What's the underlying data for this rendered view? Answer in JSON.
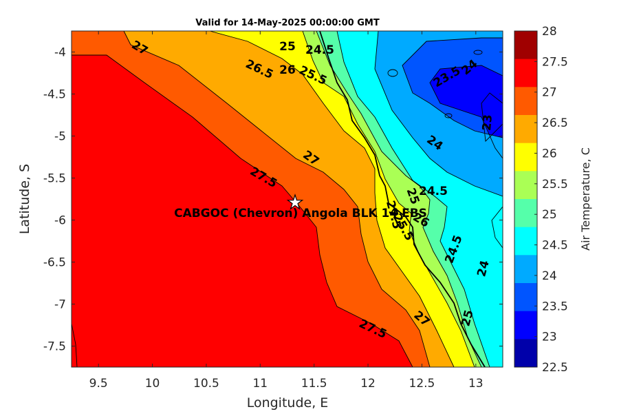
{
  "title": "Valid for 14-May-2025 00:00:00 GMT",
  "xlabel": "Longitude, E",
  "ylabel": "Latitude, S",
  "colorbar_label": "Air Temperature, C",
  "site_label": "CABGOC (Chevron)  Angola BLK 14 EBS",
  "site_marker": "star-icon",
  "x_ticks": [
    "9.5",
    "10",
    "10.5",
    "11",
    "11.5",
    "12",
    "12.5",
    "13"
  ],
  "y_ticks": [
    "-4",
    "-4.5",
    "-5",
    "-5.5",
    "-6",
    "-6.5",
    "-7",
    "-7.5"
  ],
  "colorbar_ticks": [
    "28",
    "27.5",
    "27",
    "26.5",
    "26",
    "25.5",
    "25",
    "24.5",
    "24",
    "23.5",
    "23",
    "22.5"
  ],
  "colorbar_colors": [
    "#a00000",
    "#ff0000",
    "#ff5a00",
    "#ffaa00",
    "#ffff00",
    "#aaff55",
    "#55ffaa",
    "#00ffff",
    "#00aaff",
    "#0055ff",
    "#0000ff",
    "#0000aa"
  ],
  "contour_labels": [
    {
      "text": "27"
    },
    {
      "text": "26.5"
    },
    {
      "text": "26"
    },
    {
      "text": "25"
    },
    {
      "text": "24.5"
    },
    {
      "text": "25.5"
    },
    {
      "text": "23.5"
    },
    {
      "text": "24"
    },
    {
      "text": "23"
    },
    {
      "text": "24"
    },
    {
      "text": "27"
    },
    {
      "text": "27.5"
    },
    {
      "text": "24.5"
    },
    {
      "text": "25"
    },
    {
      "text": "27.5"
    },
    {
      "text": "25.5"
    },
    {
      "text": "26"
    },
    {
      "text": "24.5"
    },
    {
      "text": "24"
    },
    {
      "text": "27"
    },
    {
      "text": "25"
    },
    {
      "text": "27.5"
    }
  ],
  "chart_data": {
    "type": "heatmap",
    "title": "Valid for 14-May-2025 00:00:00 GMT",
    "xlabel": "Longitude, E",
    "ylabel": "Latitude, S",
    "xlim": [
      9.25,
      13.25
    ],
    "ylim": [
      -7.75,
      -3.75
    ],
    "colorbar": {
      "label": "Air Temperature, C",
      "range": [
        22.5,
        28
      ],
      "step": 0.5
    },
    "site": {
      "name": "CABGOC (Chevron)  Angola BLK 14 EBS",
      "lon": 11.33,
      "lat": -5.78
    },
    "contour_levels": [
      23,
      23.5,
      24,
      24.5,
      25,
      25.5,
      26,
      26.5,
      27,
      27.5
    ],
    "grid": false,
    "legend": "colorbar-right"
  }
}
